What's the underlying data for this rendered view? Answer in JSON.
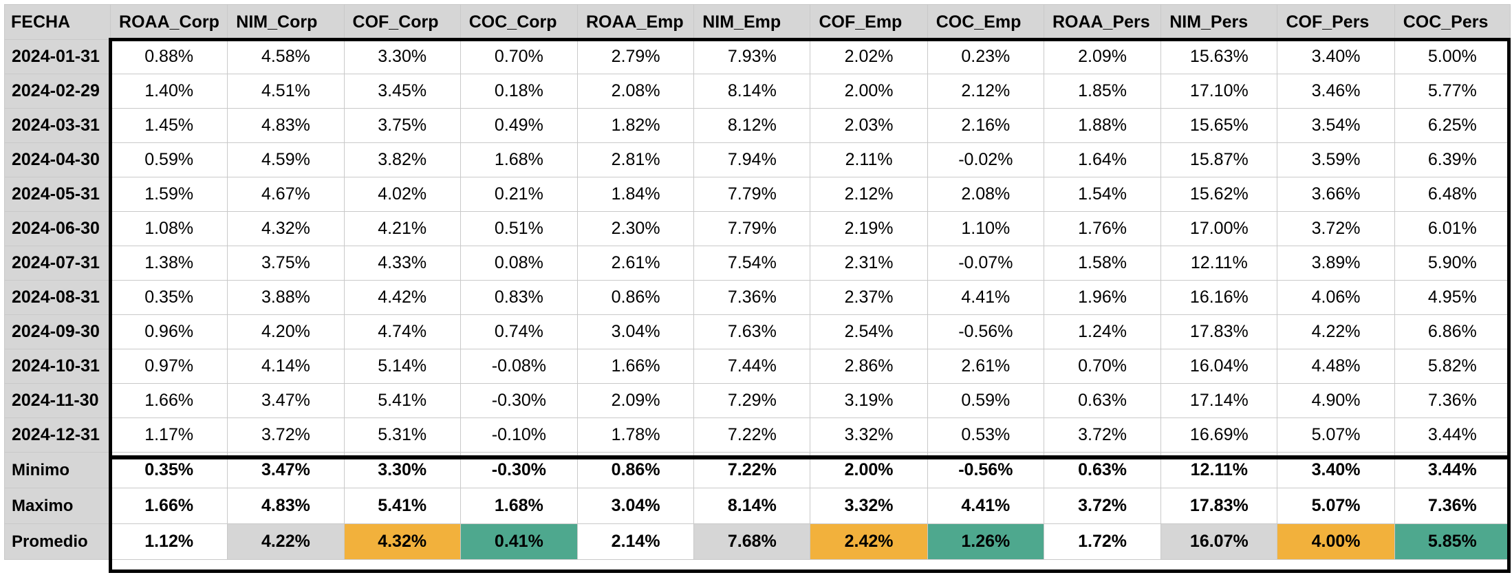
{
  "table": {
    "headers": [
      "FECHA",
      "ROAA_Corp",
      "NIM_Corp",
      "COF_Corp",
      "COC_Corp",
      "ROAA_Emp",
      "NIM_Emp",
      "COF_Emp",
      "COC_Emp",
      "ROAA_Pers",
      "NIM_Pers",
      "COF_Pers",
      "COC_Pers"
    ],
    "rows": [
      [
        "2024-01-31",
        "0.88%",
        "4.58%",
        "3.30%",
        "0.70%",
        "2.79%",
        "7.93%",
        "2.02%",
        "0.23%",
        "2.09%",
        "15.63%",
        "3.40%",
        "5.00%"
      ],
      [
        "2024-02-29",
        "1.40%",
        "4.51%",
        "3.45%",
        "0.18%",
        "2.08%",
        "8.14%",
        "2.00%",
        "2.12%",
        "1.85%",
        "17.10%",
        "3.46%",
        "5.77%"
      ],
      [
        "2024-03-31",
        "1.45%",
        "4.83%",
        "3.75%",
        "0.49%",
        "1.82%",
        "8.12%",
        "2.03%",
        "2.16%",
        "1.88%",
        "15.65%",
        "3.54%",
        "6.25%"
      ],
      [
        "2024-04-30",
        "0.59%",
        "4.59%",
        "3.82%",
        "1.68%",
        "2.81%",
        "7.94%",
        "2.11%",
        "-0.02%",
        "1.64%",
        "15.87%",
        "3.59%",
        "6.39%"
      ],
      [
        "2024-05-31",
        "1.59%",
        "4.67%",
        "4.02%",
        "0.21%",
        "1.84%",
        "7.79%",
        "2.12%",
        "2.08%",
        "1.54%",
        "15.62%",
        "3.66%",
        "6.48%"
      ],
      [
        "2024-06-30",
        "1.08%",
        "4.32%",
        "4.21%",
        "0.51%",
        "2.30%",
        "7.79%",
        "2.19%",
        "1.10%",
        "1.76%",
        "17.00%",
        "3.72%",
        "6.01%"
      ],
      [
        "2024-07-31",
        "1.38%",
        "3.75%",
        "4.33%",
        "0.08%",
        "2.61%",
        "7.54%",
        "2.31%",
        "-0.07%",
        "1.58%",
        "12.11%",
        "3.89%",
        "5.90%"
      ],
      [
        "2024-08-31",
        "0.35%",
        "3.88%",
        "4.42%",
        "0.83%",
        "0.86%",
        "7.36%",
        "2.37%",
        "4.41%",
        "1.96%",
        "16.16%",
        "4.06%",
        "4.95%"
      ],
      [
        "2024-09-30",
        "0.96%",
        "4.20%",
        "4.74%",
        "0.74%",
        "3.04%",
        "7.63%",
        "2.54%",
        "-0.56%",
        "1.24%",
        "17.83%",
        "4.22%",
        "6.86%"
      ],
      [
        "2024-10-31",
        "0.97%",
        "4.14%",
        "5.14%",
        "-0.08%",
        "1.66%",
        "7.44%",
        "2.86%",
        "2.61%",
        "0.70%",
        "16.04%",
        "4.48%",
        "5.82%"
      ],
      [
        "2024-11-30",
        "1.66%",
        "3.47%",
        "5.41%",
        "-0.30%",
        "2.09%",
        "7.29%",
        "3.19%",
        "0.59%",
        "0.63%",
        "17.14%",
        "4.90%",
        "7.36%"
      ],
      [
        "2024-12-31",
        "1.17%",
        "3.72%",
        "5.31%",
        "-0.10%",
        "1.78%",
        "7.22%",
        "3.32%",
        "0.53%",
        "3.72%",
        "16.69%",
        "5.07%",
        "3.44%"
      ]
    ],
    "summary": [
      [
        "Minimo",
        "0.35%",
        "3.47%",
        "3.30%",
        "-0.30%",
        "0.86%",
        "7.22%",
        "2.00%",
        "-0.56%",
        "0.63%",
        "12.11%",
        "3.40%",
        "3.44%"
      ],
      [
        "Maximo",
        "1.66%",
        "4.83%",
        "5.41%",
        "1.68%",
        "3.04%",
        "8.14%",
        "3.32%",
        "4.41%",
        "3.72%",
        "17.83%",
        "5.07%",
        "7.36%"
      ],
      [
        "Promedio",
        "1.12%",
        "4.22%",
        "4.32%",
        "0.41%",
        "2.14%",
        "7.68%",
        "2.42%",
        "1.26%",
        "1.72%",
        "16.07%",
        "4.00%",
        "5.85%"
      ]
    ],
    "promedio_fills": [
      "none",
      "none",
      "gray",
      "orange",
      "green",
      "none",
      "gray",
      "orange",
      "green",
      "none",
      "gray",
      "orange",
      "green"
    ]
  },
  "colors": {
    "header_bg": "#d6d6d6",
    "gray_fill": "#d6d6d6",
    "orange_fill": "#f2b13c",
    "green_fill": "#4ea88e",
    "border_box": "#000000"
  }
}
